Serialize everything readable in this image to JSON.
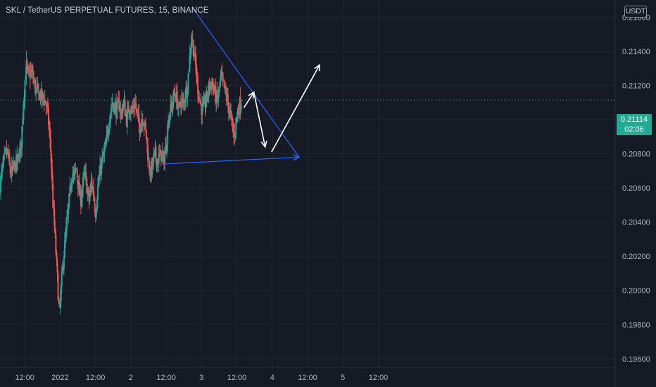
{
  "header": {
    "title": "SKL / TetherUS PERPETUAL FUTURES, 15, BINANCE",
    "currency": "USDT"
  },
  "last_price": {
    "value": "0.21114",
    "countdown": "02:06"
  },
  "colors": {
    "background": "#161a25",
    "grid": "#222632",
    "up": "#26a69a",
    "down": "#ef5350",
    "trendline": "#2962ff",
    "projection": "#ffffff",
    "last_price_tag": "#22ab94"
  },
  "chart_data": {
    "type": "candlestick",
    "title": "SKL / TetherUS PERPETUAL FUTURES, 15, BINANCE",
    "ylim": [
      0.1955,
      0.217
    ],
    "xlim": [
      -1.35,
      7.35
    ],
    "y_ticks": [
      "0.21600",
      "0.21400",
      "0.21200",
      "0.21000",
      "0.20800",
      "0.20600",
      "0.20400",
      "0.20200",
      "0.20000",
      "0.19800",
      "0.19600"
    ],
    "x_ticks": [
      {
        "label": "12:00",
        "x": -1
      },
      {
        "label": "2022",
        "x": -0.5
      },
      {
        "label": "12:00",
        "x": 0
      },
      {
        "label": "2",
        "x": 0.5
      },
      {
        "label": "12:00",
        "x": 1
      },
      {
        "label": "3",
        "x": 1.5
      },
      {
        "label": "12:00",
        "x": 2
      },
      {
        "label": "4",
        "x": 2.5
      },
      {
        "label": "12:00",
        "x": 3
      },
      {
        "label": "5",
        "x": 3.5
      },
      {
        "label": "12:00",
        "x": 4
      }
    ],
    "last_price": 0.21114,
    "price_path": [
      [
        -1.35,
        0.2062
      ],
      [
        -1.3,
        0.2075
      ],
      [
        -1.25,
        0.2082
      ],
      [
        -1.2,
        0.2068
      ],
      [
        -1.15,
        0.2072
      ],
      [
        -1.1,
        0.2076
      ],
      [
        -1.05,
        0.2085
      ],
      [
        -1.02,
        0.211
      ],
      [
        -0.98,
        0.2132
      ],
      [
        -0.95,
        0.2125
      ],
      [
        -0.9,
        0.2128
      ],
      [
        -0.85,
        0.2118
      ],
      [
        -0.8,
        0.2115
      ],
      [
        -0.75,
        0.2113
      ],
      [
        -0.7,
        0.211
      ],
      [
        -0.67,
        0.2102
      ],
      [
        -0.63,
        0.208
      ],
      [
        -0.6,
        0.205
      ],
      [
        -0.57,
        0.203
      ],
      [
        -0.54,
        0.2008
      ],
      [
        -0.51,
        0.1985
      ],
      [
        -0.48,
        0.2005
      ],
      [
        -0.45,
        0.202
      ],
      [
        -0.42,
        0.2032
      ],
      [
        -0.39,
        0.2045
      ],
      [
        -0.36,
        0.2058
      ],
      [
        -0.33,
        0.207
      ],
      [
        -0.3,
        0.2066
      ],
      [
        -0.27,
        0.2072
      ],
      [
        -0.24,
        0.206
      ],
      [
        -0.21,
        0.2052
      ],
      [
        -0.18,
        0.2062
      ],
      [
        -0.15,
        0.2068
      ],
      [
        -0.12,
        0.206
      ],
      [
        -0.09,
        0.2052
      ],
      [
        -0.06,
        0.2063
      ],
      [
        -0.03,
        0.2058
      ],
      [
        0.0,
        0.2045
      ],
      [
        0.03,
        0.206
      ],
      [
        0.06,
        0.2068
      ],
      [
        0.09,
        0.2075
      ],
      [
        0.12,
        0.208
      ],
      [
        0.15,
        0.2085
      ],
      [
        0.18,
        0.2095
      ],
      [
        0.21,
        0.2105
      ],
      [
        0.24,
        0.211
      ],
      [
        0.27,
        0.2108
      ],
      [
        0.3,
        0.2105
      ],
      [
        0.33,
        0.211
      ],
      [
        0.36,
        0.2103
      ],
      [
        0.4,
        0.211
      ],
      [
        0.44,
        0.21
      ],
      [
        0.48,
        0.2108
      ],
      [
        0.52,
        0.2105
      ],
      [
        0.56,
        0.211
      ],
      [
        0.6,
        0.21
      ],
      [
        0.63,
        0.2095
      ],
      [
        0.66,
        0.2102
      ],
      [
        0.69,
        0.2098
      ],
      [
        0.72,
        0.209
      ],
      [
        0.75,
        0.2075
      ],
      [
        0.78,
        0.2068
      ],
      [
        0.81,
        0.2075
      ],
      [
        0.84,
        0.208
      ],
      [
        0.87,
        0.2076
      ],
      [
        0.9,
        0.2078
      ],
      [
        0.93,
        0.208
      ],
      [
        0.96,
        0.2075
      ],
      [
        1.0,
        0.2085
      ],
      [
        1.03,
        0.21
      ],
      [
        1.06,
        0.2105
      ],
      [
        1.09,
        0.211
      ],
      [
        1.12,
        0.2116
      ],
      [
        1.15,
        0.2112
      ],
      [
        1.18,
        0.2105
      ],
      [
        1.21,
        0.2112
      ],
      [
        1.24,
        0.2108
      ],
      [
        1.27,
        0.2115
      ],
      [
        1.3,
        0.212
      ],
      [
        1.33,
        0.2135
      ],
      [
        1.36,
        0.215
      ],
      [
        1.39,
        0.214
      ],
      [
        1.42,
        0.213
      ],
      [
        1.45,
        0.2118
      ],
      [
        1.48,
        0.211
      ],
      [
        1.51,
        0.2105
      ],
      [
        1.54,
        0.2108
      ],
      [
        1.57,
        0.2112
      ],
      [
        1.6,
        0.2118
      ],
      [
        1.63,
        0.2122
      ],
      [
        1.66,
        0.212
      ],
      [
        1.69,
        0.2115
      ],
      [
        1.72,
        0.211
      ],
      [
        1.75,
        0.2118
      ],
      [
        1.78,
        0.2125
      ],
      [
        1.81,
        0.212
      ],
      [
        1.84,
        0.2115
      ],
      [
        1.87,
        0.211
      ],
      [
        1.9,
        0.2104
      ],
      [
        1.93,
        0.2097
      ],
      [
        1.96,
        0.209
      ],
      [
        1.99,
        0.21
      ],
      [
        2.02,
        0.2106
      ],
      [
        2.05,
        0.211
      ],
      [
        2.07,
        0.2112
      ]
    ],
    "annotations": {
      "upper_trendline": [
        [
          1.38,
          0.2165
        ],
        [
          2.88,
          0.2078
        ]
      ],
      "lower_trendline": [
        [
          0.96,
          0.2074
        ],
        [
          2.88,
          0.2078
        ]
      ],
      "projection_path": [
        [
          2.1,
          0.2107
        ],
        [
          2.24,
          0.2116
        ],
        [
          2.4,
          0.2084
        ],
        [
          2.49,
          0.2081
        ],
        [
          3.17,
          0.2132
        ]
      ]
    }
  }
}
